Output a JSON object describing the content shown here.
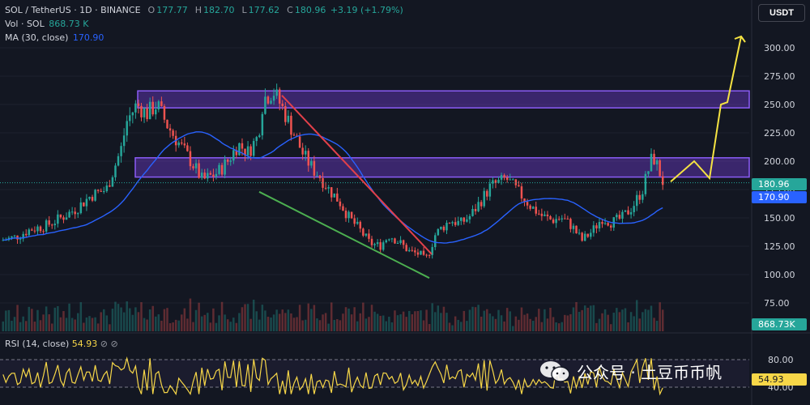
{
  "header": {
    "symbol": "SOL / TetherUS · 1D · BINANCE",
    "open_label": "O",
    "open": "177.77",
    "high_label": "H",
    "high": "182.70",
    "low_label": "L",
    "low": "177.62",
    "close_label": "C",
    "close": "180.96",
    "change": "+3.19 (+1.79%)",
    "vol_label": "Vol · SOL",
    "vol_value": "868.73 K",
    "ma_label": "MA (30, close)",
    "ma_value": "170.90"
  },
  "rsi": {
    "label": "RSI (14, close)",
    "value": "54.93",
    "icons": "⊘  ⊘"
  },
  "currency_button": "USDT",
  "price_axis": {
    "ticks": [
      "300.00",
      "275.00",
      "250.00",
      "225.00",
      "200.00",
      "175.00",
      "150.00",
      "125.00",
      "100.00",
      "75.00"
    ],
    "current_price_tag": "180.96",
    "ma_tag": "170.90",
    "volume_tag": "868.73K"
  },
  "rsi_axis": {
    "ticks": [
      "80.00",
      "40.00"
    ],
    "value_tag": "54.93"
  },
  "watermark": "公众号 · 土豆币币帆",
  "colors": {
    "background": "#131722",
    "up": "#26a69a",
    "down": "#ef5350",
    "ma": "#2962ff",
    "rsi": "#f7d748",
    "zone": "#7b3fe4",
    "projection": "#f5e342",
    "trend_red": "#e2404a",
    "trend_green": "#4caf50"
  },
  "chart_data": {
    "type": "candlestick",
    "y_range": [
      62,
      318
    ],
    "y_ticks": [
      75,
      100,
      125,
      150,
      175,
      200,
      225,
      250,
      275,
      300
    ],
    "price_path": [
      [
        0,
        130
      ],
      [
        0.03,
        133
      ],
      [
        0.06,
        140
      ],
      [
        0.09,
        143
      ],
      [
        0.12,
        150
      ],
      [
        0.15,
        158
      ],
      [
        0.18,
        170
      ],
      [
        0.21,
        175
      ],
      [
        0.24,
        212
      ],
      [
        0.25,
        235
      ],
      [
        0.27,
        250
      ],
      [
        0.29,
        242
      ],
      [
        0.31,
        250
      ],
      [
        0.33,
        232
      ],
      [
        0.35,
        218
      ],
      [
        0.38,
        198
      ],
      [
        0.4,
        183
      ],
      [
        0.43,
        190
      ],
      [
        0.45,
        200
      ],
      [
        0.47,
        215
      ],
      [
        0.49,
        208
      ],
      [
        0.51,
        222
      ],
      [
        0.52,
        255
      ],
      [
        0.54,
        262
      ],
      [
        0.56,
        245
      ],
      [
        0.58,
        225
      ],
      [
        0.6,
        205
      ],
      [
        0.62,
        192
      ],
      [
        0.63,
        188
      ],
      [
        0.65,
        175
      ],
      [
        0.67,
        165
      ],
      [
        0.69,
        150
      ],
      [
        0.71,
        140
      ],
      [
        0.73,
        128
      ],
      [
        0.75,
        125
      ],
      [
        0.77,
        135
      ],
      [
        0.79,
        128
      ],
      [
        0.81,
        120
      ],
      [
        0.83,
        118
      ],
      [
        0.84,
        112
      ],
      [
        0.85,
        122
      ],
      [
        0.86,
        135
      ],
      [
        0.87,
        140
      ],
      [
        0.89,
        148
      ],
      [
        0.91,
        145
      ],
      [
        0.93,
        152
      ],
      [
        0.95,
        165
      ],
      [
        0.97,
        178
      ],
      [
        0.99,
        182
      ],
      [
        1.0,
        185
      ],
      [
        1.01,
        180
      ],
      [
        1.03,
        170
      ],
      [
        1.05,
        160
      ],
      [
        1.07,
        152
      ],
      [
        1.09,
        148
      ],
      [
        1.11,
        150
      ],
      [
        1.13,
        143
      ],
      [
        1.15,
        130
      ],
      [
        1.17,
        138
      ],
      [
        1.19,
        150
      ],
      [
        1.21,
        146
      ],
      [
        1.23,
        150
      ],
      [
        1.25,
        160
      ],
      [
        1.27,
        175
      ],
      [
        1.29,
        205
      ],
      [
        1.3,
        195
      ],
      [
        1.31,
        182
      ]
    ],
    "ma": {
      "name": "MA (30, close)",
      "last": 170.9
    },
    "current_price": 180.96,
    "zones": [
      {
        "low": 247,
        "high": 262
      },
      {
        "low": 186,
        "high": 203
      }
    ],
    "trendlines": [
      {
        "color": "red",
        "from": 258,
        "to": 118
      },
      {
        "color": "green",
        "from": 173,
        "to": 97
      }
    ],
    "projection_path": [
      182,
      200,
      185,
      250,
      252,
      310
    ],
    "rsi": {
      "name": "RSI (14, close)",
      "last": 54.93,
      "levels": [
        80,
        40
      ]
    }
  }
}
